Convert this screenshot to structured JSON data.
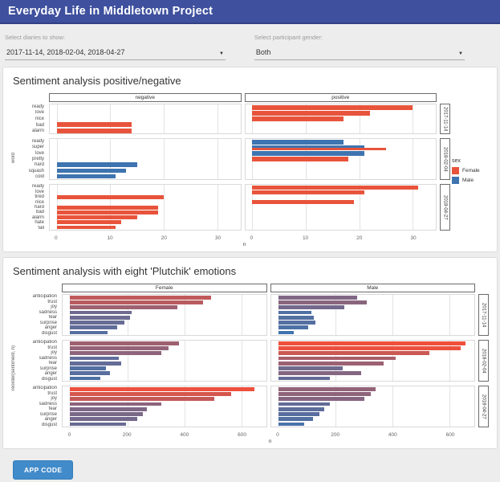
{
  "header": {
    "title": "Everyday Life in Middletown Project"
  },
  "controls": {
    "diaries": {
      "label": "Select diaries to show:",
      "value": "2017-11-14,  2018-02-04,  2018-04-27"
    },
    "gender": {
      "label": "Select participant gender:",
      "value": "Both"
    }
  },
  "colors": {
    "header": "#3e509e",
    "female": "#e8543b",
    "male": "#3e74b0",
    "button": "#428bca"
  },
  "footer": {
    "app_code_label": "APP CODE"
  },
  "chart_data": [
    {
      "type": "bar",
      "title": "Sentiment analysis positive/negative",
      "xlabel": "n",
      "ylabel": "word",
      "xlim": [
        0,
        33
      ],
      "xticks": [
        0,
        10,
        20,
        30
      ],
      "col_facets": [
        "negative",
        "positive"
      ],
      "row_facets": [
        "2017-11-14",
        "2018-02-04",
        "2018-04-27"
      ],
      "legend": {
        "title": "sex",
        "items": [
          {
            "label": "Female",
            "color": "#e8543b"
          },
          {
            "label": "Male",
            "color": "#3e74b0"
          }
        ]
      },
      "rows": [
        {
          "date": "2017-11-14",
          "words": [
            {
              "label": "ready",
              "positive": [
                [
                  "Female",
                  30
                ]
              ]
            },
            {
              "label": "love",
              "positive": [
                [
                  "Female",
                  22
                ]
              ]
            },
            {
              "label": "nice",
              "positive": [
                [
                  "Female",
                  17
                ]
              ]
            },
            {
              "label": "bad",
              "negative": [
                [
                  "Female",
                  14
                ]
              ]
            },
            {
              "label": "alarm",
              "negative": [
                [
                  "Female",
                  14
                ]
              ]
            }
          ]
        },
        {
          "date": "2018-02-04",
          "words": [
            {
              "label": "ready",
              "positive": [
                [
                  "Male",
                  17
                ]
              ]
            },
            {
              "label": "super",
              "positive": [
                [
                  "Male",
                  21
                ],
                [
                  "Female",
                  25
                ]
              ]
            },
            {
              "label": "love",
              "positive": [
                [
                  "Male",
                  21
                ]
              ]
            },
            {
              "label": "pretty",
              "positive": [
                [
                  "Female",
                  18
                ]
              ]
            },
            {
              "label": "hard",
              "negative": [
                [
                  "Male",
                  15
                ]
              ]
            },
            {
              "label": "squash",
              "negative": [
                [
                  "Male",
                  13
                ]
              ]
            },
            {
              "label": "cold",
              "negative": [
                [
                  "Male",
                  11
                ]
              ]
            }
          ]
        },
        {
          "date": "2018-04-27",
          "words": [
            {
              "label": "ready",
              "positive": [
                [
                  "Female",
                  31
                ]
              ]
            },
            {
              "label": "love",
              "positive": [
                [
                  "Female",
                  21
                ]
              ]
            },
            {
              "label": "tired",
              "negative": [
                [
                  "Female",
                  20
                ]
              ]
            },
            {
              "label": "nice",
              "positive": [
                [
                  "Female",
                  19
                ]
              ]
            },
            {
              "label": "hard",
              "negative": [
                [
                  "Female",
                  19
                ]
              ]
            },
            {
              "label": "bad",
              "negative": [
                [
                  "Female",
                  19
                ]
              ]
            },
            {
              "label": "alarm",
              "negative": [
                [
                  "Female",
                  15
                ]
              ]
            },
            {
              "label": "hate",
              "negative": [
                [
                  "Female",
                  12
                ]
              ]
            },
            {
              "label": "fall",
              "negative": [
                [
                  "Female",
                  11
                ]
              ]
            }
          ]
        }
      ]
    },
    {
      "type": "bar",
      "title": "Sentiment analysis with eight 'Plutchik' emotions",
      "xlabel": "n",
      "ylabel": "reorder(sentiment, n)",
      "xlim": [
        0,
        660
      ],
      "xticks": [
        0,
        200,
        400,
        600
      ],
      "col_facets": [
        "Female",
        "Male"
      ],
      "row_facets": [
        "2017-11-14",
        "2018-02-04",
        "2018-04-27"
      ],
      "categories": [
        "anticipation",
        "trust",
        "joy",
        "sadness",
        "fear",
        "surprise",
        "anger",
        "disgust"
      ],
      "series": [
        {
          "facet": "Female",
          "date": "2017-11-14",
          "values": [
            495,
            465,
            375,
            215,
            210,
            190,
            165,
            130
          ]
        },
        {
          "facet": "Female",
          "date": "2018-02-04",
          "values": [
            380,
            345,
            320,
            170,
            180,
            125,
            140,
            105
          ]
        },
        {
          "facet": "Female",
          "date": "2018-04-27",
          "values": [
            645,
            565,
            505,
            320,
            270,
            255,
            235,
            195
          ]
        },
        {
          "facet": "Male",
          "date": "2017-11-14",
          "values": [
            275,
            310,
            230,
            115,
            125,
            130,
            105,
            55
          ]
        },
        {
          "facet": "Male",
          "date": "2018-02-04",
          "values": [
            655,
            640,
            530,
            410,
            370,
            225,
            290,
            180
          ]
        },
        {
          "facet": "Male",
          "date": "2018-04-27",
          "values": [
            340,
            325,
            300,
            180,
            160,
            145,
            120,
            90
          ]
        }
      ],
      "color_scale": {
        "low": "#3e74b0",
        "high": "#f1503a",
        "domain": [
          50,
          660
        ]
      }
    }
  ]
}
